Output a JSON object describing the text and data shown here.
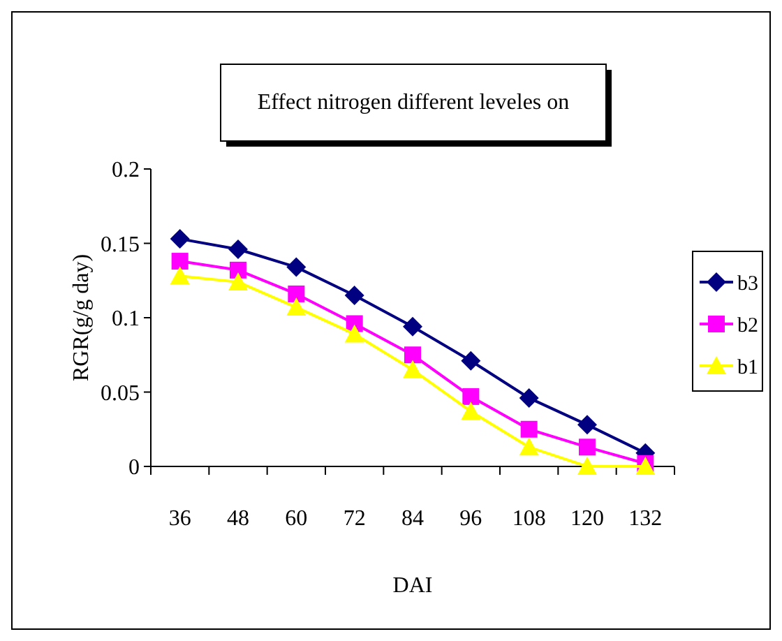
{
  "chart_data": {
    "type": "line",
    "title": "Effect nitrogen different leveles on",
    "xlabel": "DAI",
    "ylabel": "RGR(g/g day)",
    "categories": [
      "36",
      "48",
      "60",
      "72",
      "84",
      "96",
      "108",
      "120",
      "132"
    ],
    "series": [
      {
        "name": "b3",
        "color": "#000080",
        "marker": "diamond",
        "values": [
          0.153,
          0.146,
          0.134,
          0.115,
          0.094,
          0.071,
          0.046,
          0.028,
          0.009
        ]
      },
      {
        "name": "b2",
        "color": "#ff00ff",
        "marker": "square",
        "values": [
          0.138,
          0.132,
          0.116,
          0.096,
          0.075,
          0.047,
          0.025,
          0.013,
          0.002
        ]
      },
      {
        "name": "b1",
        "color": "#ffff00",
        "marker": "triangle",
        "values": [
          0.128,
          0.124,
          0.107,
          0.089,
          0.065,
          0.037,
          0.013,
          0,
          0
        ]
      }
    ],
    "ylim": [
      0,
      0.2
    ],
    "yticks": [
      {
        "value": 0,
        "label": "0"
      },
      {
        "value": 0.05,
        "label": "0.05"
      },
      {
        "value": 0.1,
        "label": "0.1"
      },
      {
        "value": 0.15,
        "label": "0.15"
      },
      {
        "value": 0.2,
        "label": "0.2"
      }
    ],
    "grid": false,
    "legend": "right",
    "line_style": "solid"
  }
}
